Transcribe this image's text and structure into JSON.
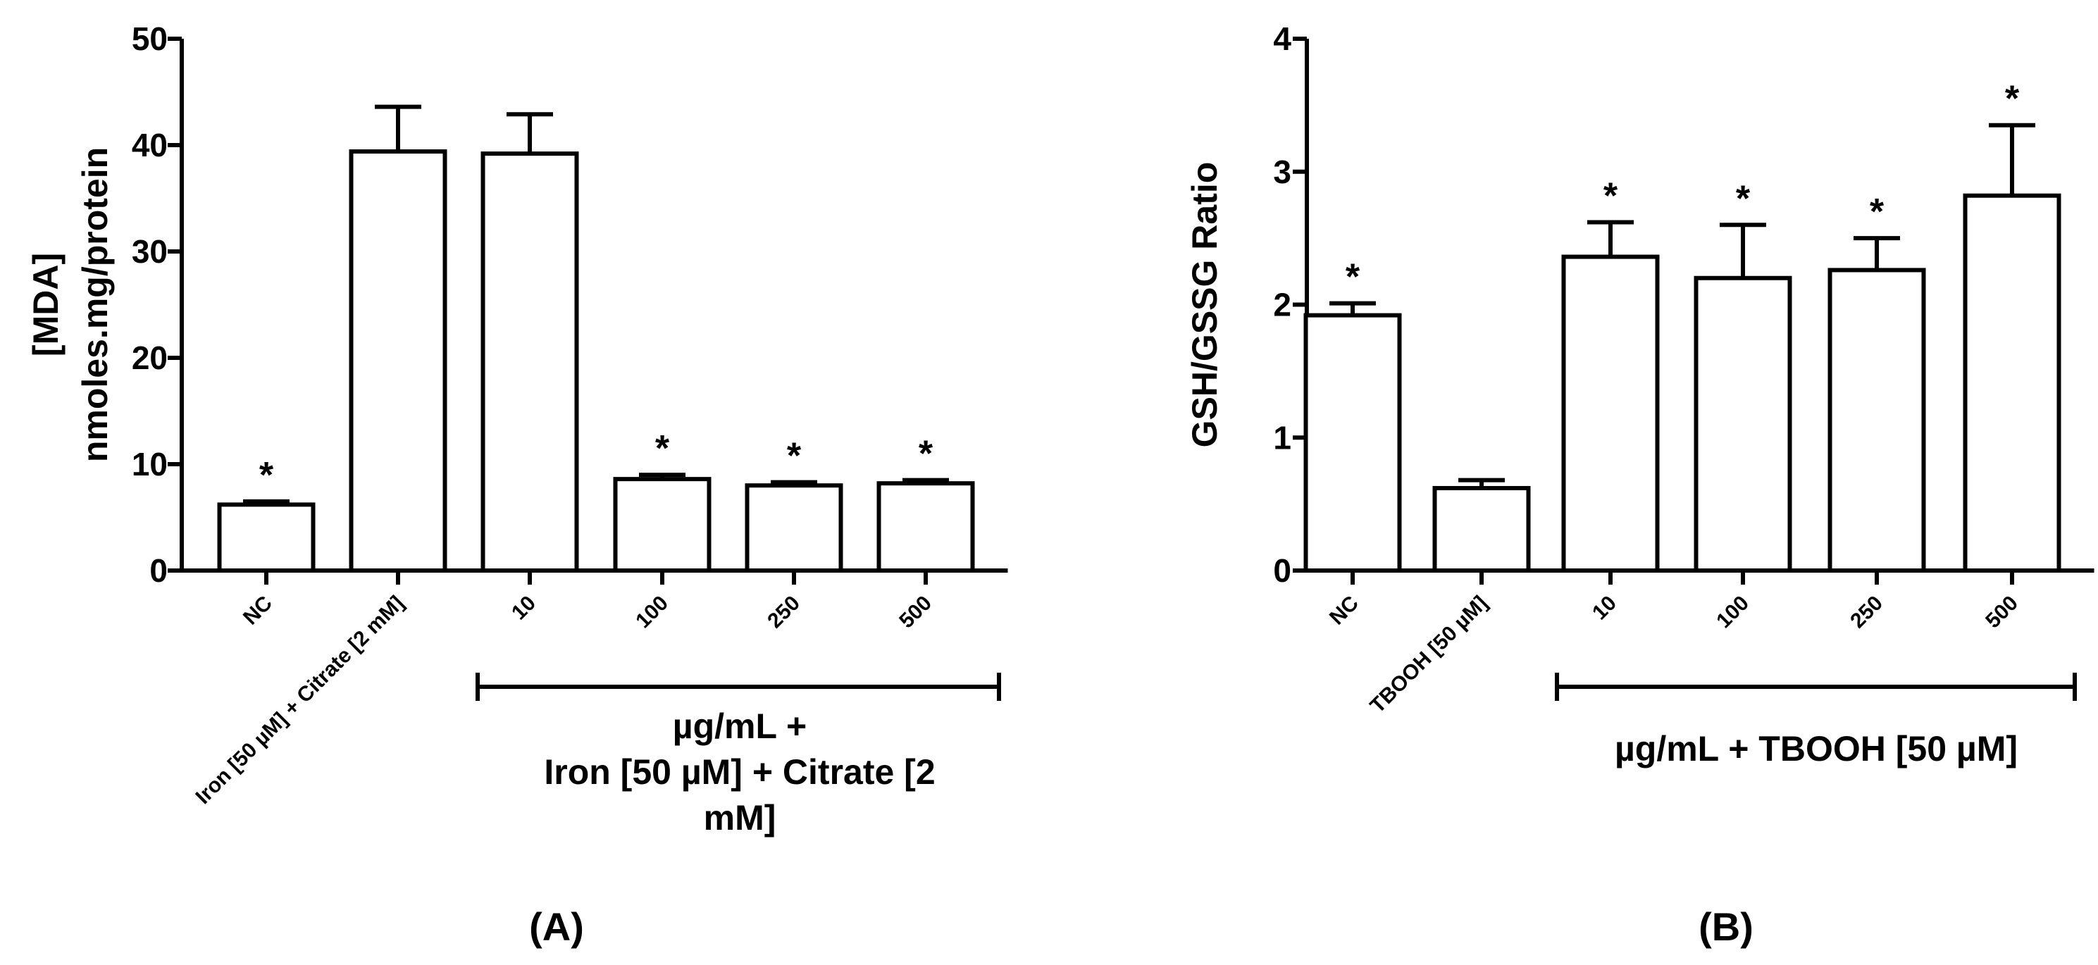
{
  "chart_data": [
    {
      "type": "bar",
      "panel_label": "(A)",
      "ylabel_lines": [
        "[MDA]",
        "nmoles.mg/protein"
      ],
      "ylim": [
        0,
        50
      ],
      "yticks": [
        0,
        10,
        20,
        30,
        40,
        50
      ],
      "categories": [
        "NC",
        "Iron [50 µM] + Citrate [2 mM]",
        "10",
        "100",
        "250",
        "500"
      ],
      "values": [
        6.2,
        39.4,
        39.2,
        8.6,
        8.0,
        8.2
      ],
      "errors": [
        0.3,
        4.2,
        3.7,
        0.4,
        0.3,
        0.3
      ],
      "significant": [
        true,
        false,
        false,
        true,
        true,
        true
      ],
      "significance_marker": "*",
      "group_label_lines": [
        "µg/mL +",
        "Iron [50 µM] + Citrate [2",
        "mM]"
      ],
      "group_span": [
        "10",
        "500"
      ]
    },
    {
      "type": "bar",
      "panel_label": "(B)",
      "ylabel_lines": [
        "GSH/GSSG Ratio"
      ],
      "ylim": [
        0,
        4
      ],
      "yticks": [
        0,
        1,
        2,
        3,
        4
      ],
      "categories": [
        "NC",
        "TBOOH [50 µM]",
        "10",
        "100",
        "250",
        "500"
      ],
      "values": [
        1.92,
        0.62,
        2.36,
        2.2,
        2.26,
        2.82
      ],
      "errors": [
        0.09,
        0.06,
        0.26,
        0.4,
        0.24,
        0.53
      ],
      "significant": [
        true,
        false,
        true,
        true,
        true,
        true
      ],
      "significance_marker": "*",
      "group_label_lines": [
        "µg/mL + TBOOH [50 µM]"
      ],
      "group_span": [
        "10",
        "500"
      ]
    }
  ]
}
